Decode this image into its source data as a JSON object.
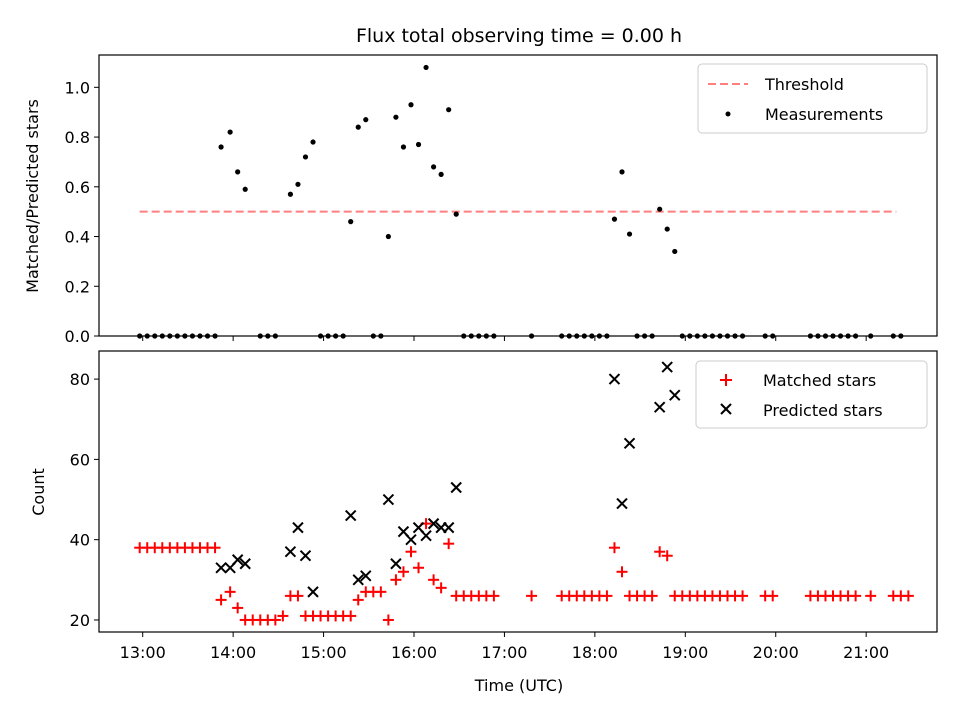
{
  "chart_data": [
    {
      "type": "scatter",
      "title": "Flux total observing time = 0.00 h",
      "ylabel": "Matched/Predicted stars",
      "xlabel": "",
      "xlim": [
        "12:31",
        "21:47"
      ],
      "ylim": [
        0,
        1.13
      ],
      "y_ticks": [
        "0.0",
        "0.2",
        "0.4",
        "0.6",
        "0.8",
        "1.0"
      ],
      "grid": false,
      "legend": {
        "placement": "top-right"
      },
      "threshold": {
        "name": "Threshold",
        "value": 0.5,
        "x_start": "12:58",
        "x_end": "21:20",
        "color": "#ff7f7f"
      },
      "series": [
        {
          "name": "Measurements",
          "color": "#000000",
          "points": [
            [
              "12:58",
              0
            ],
            [
              "13:03",
              0
            ],
            [
              "13:08",
              0
            ],
            [
              "13:13",
              0
            ],
            [
              "13:18",
              0
            ],
            [
              "13:23",
              0
            ],
            [
              "13:28",
              0
            ],
            [
              "13:33",
              0
            ],
            [
              "13:38",
              0
            ],
            [
              "13:43",
              0
            ],
            [
              "13:48",
              0
            ],
            [
              "13:52",
              0.76
            ],
            [
              "13:58",
              0.82
            ],
            [
              "14:03",
              0.66
            ],
            [
              "14:08",
              0.59
            ],
            [
              "14:18",
              0
            ],
            [
              "14:23",
              0
            ],
            [
              "14:28",
              0
            ],
            [
              "14:38",
              0.57
            ],
            [
              "14:43",
              0.61
            ],
            [
              "14:48",
              0.72
            ],
            [
              "14:53",
              0.78
            ],
            [
              "14:58",
              0
            ],
            [
              "15:03",
              0
            ],
            [
              "15:08",
              0
            ],
            [
              "15:13",
              0
            ],
            [
              "15:18",
              0.46
            ],
            [
              "15:23",
              0.84
            ],
            [
              "15:28",
              0.87
            ],
            [
              "15:33",
              0
            ],
            [
              "15:38",
              0
            ],
            [
              "15:43",
              0.4
            ],
            [
              "15:48",
              0.88
            ],
            [
              "15:53",
              0.76
            ],
            [
              "15:58",
              0.93
            ],
            [
              "16:03",
              0.77
            ],
            [
              "16:08",
              1.08
            ],
            [
              "16:13",
              0.68
            ],
            [
              "16:18",
              0.65
            ],
            [
              "16:23",
              0.91
            ],
            [
              "16:28",
              0.49
            ],
            [
              "16:33",
              0
            ],
            [
              "16:38",
              0
            ],
            [
              "16:43",
              0
            ],
            [
              "16:48",
              0
            ],
            [
              "16:53",
              0
            ],
            [
              "17:18",
              0
            ],
            [
              "17:38",
              0
            ],
            [
              "17:43",
              0
            ],
            [
              "17:48",
              0
            ],
            [
              "17:53",
              0
            ],
            [
              "17:58",
              0
            ],
            [
              "18:03",
              0
            ],
            [
              "18:08",
              0
            ],
            [
              "18:13",
              0.47
            ],
            [
              "18:18",
              0.66
            ],
            [
              "18:23",
              0.41
            ],
            [
              "18:28",
              0
            ],
            [
              "18:33",
              0
            ],
            [
              "18:38",
              0
            ],
            [
              "18:43",
              0.51
            ],
            [
              "18:48",
              0.43
            ],
            [
              "18:53",
              0.34
            ],
            [
              "18:58",
              0
            ],
            [
              "19:03",
              0
            ],
            [
              "19:08",
              0
            ],
            [
              "19:13",
              0
            ],
            [
              "19:18",
              0
            ],
            [
              "19:23",
              0
            ],
            [
              "19:28",
              0
            ],
            [
              "19:33",
              0
            ],
            [
              "19:38",
              0
            ],
            [
              "19:53",
              0
            ],
            [
              "19:58",
              0
            ],
            [
              "20:23",
              0
            ],
            [
              "20:28",
              0
            ],
            [
              "20:33",
              0
            ],
            [
              "20:38",
              0
            ],
            [
              "20:43",
              0
            ],
            [
              "20:48",
              0
            ],
            [
              "20:53",
              0
            ],
            [
              "21:03",
              0
            ],
            [
              "21:18",
              0
            ],
            [
              "21:23",
              0
            ]
          ]
        }
      ]
    },
    {
      "type": "scatter",
      "title": "",
      "ylabel": "Count",
      "xlabel": "Time (UTC)",
      "xlim": [
        "12:31",
        "21:47"
      ],
      "ylim": [
        17,
        87
      ],
      "x_ticks": [
        "13:00",
        "14:00",
        "15:00",
        "16:00",
        "17:00",
        "18:00",
        "19:00",
        "20:00",
        "21:00"
      ],
      "y_ticks": [
        "20",
        "40",
        "60",
        "80"
      ],
      "grid": false,
      "legend": {
        "placement": "top-right"
      },
      "series": [
        {
          "name": "Matched stars",
          "marker": "plus",
          "color": "#ff0000",
          "points": [
            [
              "12:58",
              38
            ],
            [
              "13:03",
              38
            ],
            [
              "13:08",
              38
            ],
            [
              "13:13",
              38
            ],
            [
              "13:18",
              38
            ],
            [
              "13:23",
              38
            ],
            [
              "13:28",
              38
            ],
            [
              "13:33",
              38
            ],
            [
              "13:38",
              38
            ],
            [
              "13:43",
              38
            ],
            [
              "13:48",
              38
            ],
            [
              "13:52",
              25
            ],
            [
              "13:58",
              27
            ],
            [
              "14:03",
              23
            ],
            [
              "14:08",
              20
            ],
            [
              "14:13",
              20
            ],
            [
              "14:18",
              20
            ],
            [
              "14:23",
              20
            ],
            [
              "14:28",
              20
            ],
            [
              "14:33",
              21
            ],
            [
              "14:38",
              26
            ],
            [
              "14:43",
              26
            ],
            [
              "14:48",
              21
            ],
            [
              "14:53",
              21
            ],
            [
              "14:58",
              21
            ],
            [
              "15:03",
              21
            ],
            [
              "15:08",
              21
            ],
            [
              "15:13",
              21
            ],
            [
              "15:18",
              21
            ],
            [
              "15:23",
              25
            ],
            [
              "15:28",
              27
            ],
            [
              "15:33",
              27
            ],
            [
              "15:38",
              27
            ],
            [
              "15:43",
              20
            ],
            [
              "15:48",
              30
            ],
            [
              "15:53",
              32
            ],
            [
              "15:58",
              37
            ],
            [
              "16:03",
              33
            ],
            [
              "16:08",
              44
            ],
            [
              "16:13",
              30
            ],
            [
              "16:18",
              28
            ],
            [
              "16:23",
              39
            ],
            [
              "16:28",
              26
            ],
            [
              "16:33",
              26
            ],
            [
              "16:38",
              26
            ],
            [
              "16:43",
              26
            ],
            [
              "16:48",
              26
            ],
            [
              "16:53",
              26
            ],
            [
              "17:18",
              26
            ],
            [
              "17:38",
              26
            ],
            [
              "17:43",
              26
            ],
            [
              "17:48",
              26
            ],
            [
              "17:53",
              26
            ],
            [
              "17:58",
              26
            ],
            [
              "18:03",
              26
            ],
            [
              "18:08",
              26
            ],
            [
              "18:13",
              38
            ],
            [
              "18:18",
              32
            ],
            [
              "18:23",
              26
            ],
            [
              "18:28",
              26
            ],
            [
              "18:33",
              26
            ],
            [
              "18:38",
              26
            ],
            [
              "18:43",
              37
            ],
            [
              "18:48",
              36
            ],
            [
              "18:53",
              26
            ],
            [
              "18:58",
              26
            ],
            [
              "19:03",
              26
            ],
            [
              "19:08",
              26
            ],
            [
              "19:13",
              26
            ],
            [
              "19:18",
              26
            ],
            [
              "19:23",
              26
            ],
            [
              "19:28",
              26
            ],
            [
              "19:33",
              26
            ],
            [
              "19:38",
              26
            ],
            [
              "19:53",
              26
            ],
            [
              "19:58",
              26
            ],
            [
              "20:23",
              26
            ],
            [
              "20:28",
              26
            ],
            [
              "20:33",
              26
            ],
            [
              "20:38",
              26
            ],
            [
              "20:43",
              26
            ],
            [
              "20:48",
              26
            ],
            [
              "20:53",
              26
            ],
            [
              "21:03",
              26
            ],
            [
              "21:18",
              26
            ],
            [
              "21:23",
              26
            ],
            [
              "21:28",
              26
            ]
          ]
        },
        {
          "name": "Predicted stars",
          "marker": "x",
          "color": "#000000",
          "points": [
            [
              "13:52",
              33
            ],
            [
              "13:58",
              33
            ],
            [
              "14:03",
              35
            ],
            [
              "14:08",
              34
            ],
            [
              "14:38",
              37
            ],
            [
              "14:43",
              43
            ],
            [
              "14:48",
              36
            ],
            [
              "14:53",
              27
            ],
            [
              "15:18",
              46
            ],
            [
              "15:23",
              30
            ],
            [
              "15:28",
              31
            ],
            [
              "15:43",
              50
            ],
            [
              "15:48",
              34
            ],
            [
              "15:53",
              42
            ],
            [
              "15:58",
              40
            ],
            [
              "16:03",
              43
            ],
            [
              "16:08",
              41
            ],
            [
              "16:13",
              44
            ],
            [
              "16:18",
              43
            ],
            [
              "16:23",
              43
            ],
            [
              "16:28",
              53
            ],
            [
              "18:13",
              80
            ],
            [
              "18:18",
              49
            ],
            [
              "18:23",
              64
            ],
            [
              "18:43",
              73
            ],
            [
              "18:48",
              83
            ],
            [
              "18:53",
              76
            ]
          ]
        }
      ]
    }
  ]
}
